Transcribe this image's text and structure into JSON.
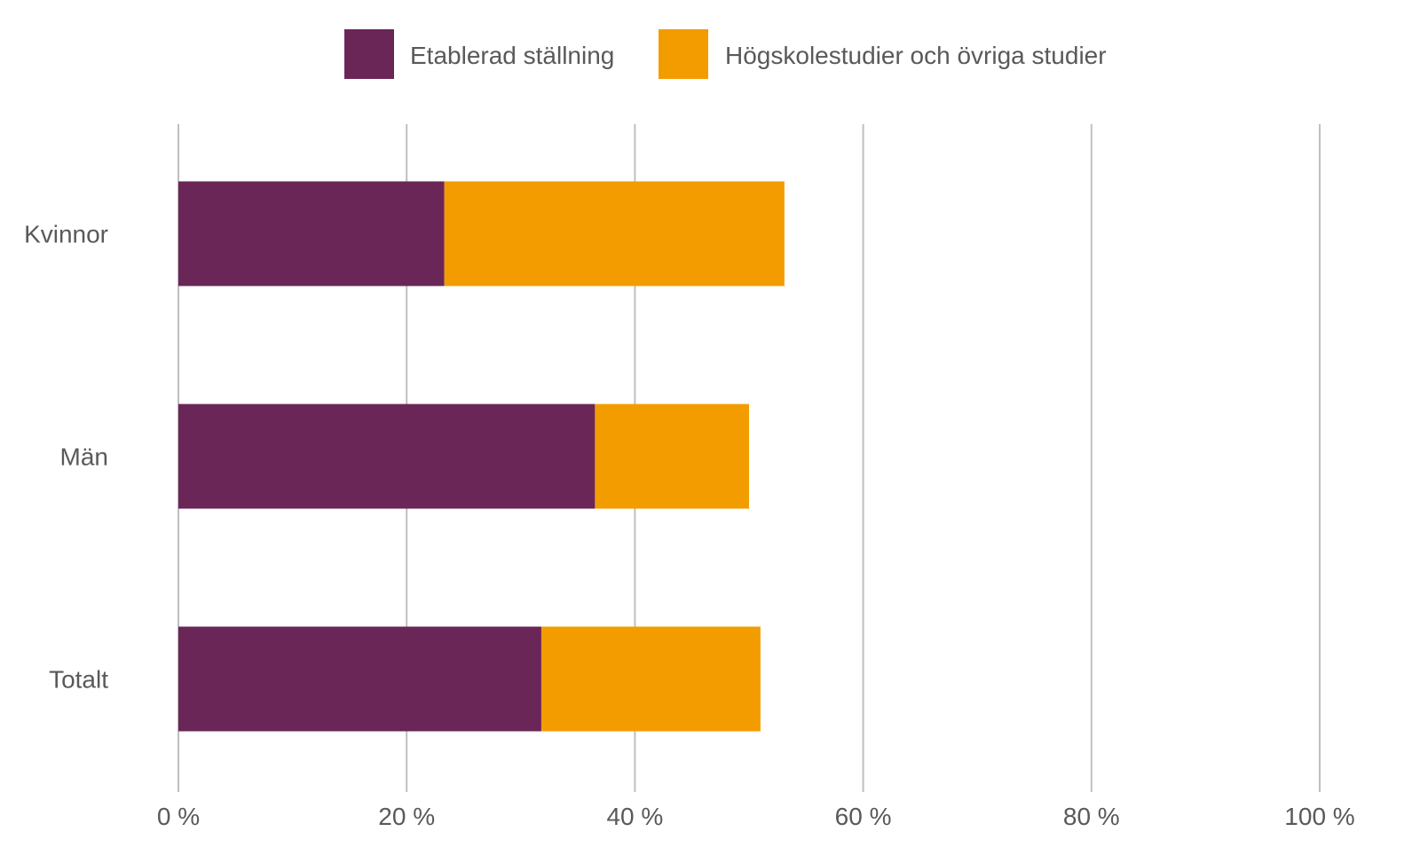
{
  "chart_data": {
    "type": "bar",
    "orientation": "horizontal",
    "stacked": true,
    "categories": [
      "Kvinnor",
      "Män",
      "Totalt"
    ],
    "series": [
      {
        "name": "Etablerad ställning",
        "values": [
          23.3,
          36.5,
          31.8
        ],
        "color": "#6a2657"
      },
      {
        "name": "Högskolestudier och övriga studier",
        "values": [
          29.8,
          13.5,
          19.2
        ],
        "color": "#f39c00"
      }
    ],
    "xlim": [
      0,
      100
    ],
    "xticks": [
      0,
      20,
      40,
      60,
      80,
      100
    ],
    "xtick_labels": [
      "0 %",
      "20 %",
      "40 %",
      "60 %",
      "80 %",
      "100 %"
    ],
    "grid": "vertical",
    "legend_position": "top",
    "title": "",
    "xlabel": "",
    "ylabel": ""
  }
}
